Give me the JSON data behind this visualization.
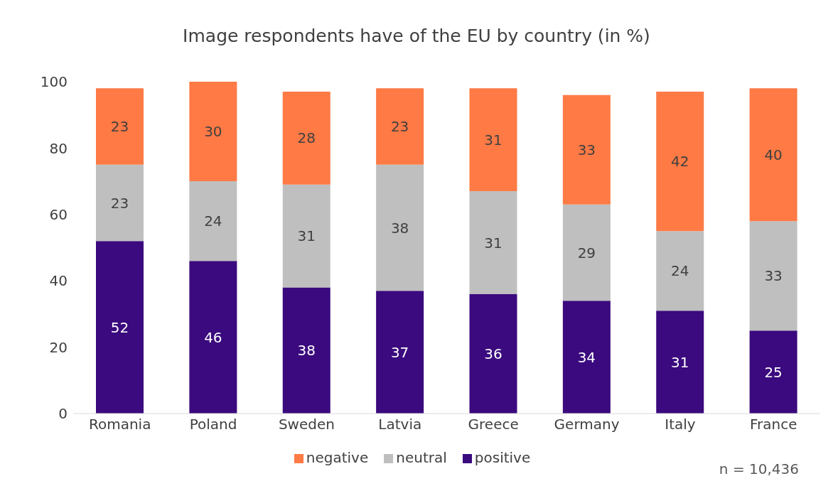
{
  "chart_data": {
    "type": "bar",
    "title": "Image respondents have of the EU by country (in %)",
    "categories": [
      "Romania",
      "Poland",
      "Sweden",
      "Latvia",
      "Greece",
      "Germany",
      "Italy",
      "France"
    ],
    "series": [
      {
        "name": "positive",
        "color": "#3a0a7e",
        "values": [
          52,
          46,
          38,
          37,
          36,
          34,
          31,
          25
        ]
      },
      {
        "name": "neutral",
        "color": "#bfbfbf",
        "values": [
          23,
          24,
          31,
          38,
          31,
          29,
          24,
          33
        ]
      },
      {
        "name": "negative",
        "color": "#ff7a45",
        "values": [
          23,
          30,
          28,
          23,
          31,
          33,
          42,
          40
        ]
      }
    ],
    "stacked": true,
    "data_labels": true,
    "ylim": [
      0,
      100
    ],
    "yticks": [
      0,
      20,
      40,
      60,
      80,
      100
    ],
    "grid": false,
    "legend": "bottom",
    "annotations": [
      "n = 10,436"
    ]
  }
}
